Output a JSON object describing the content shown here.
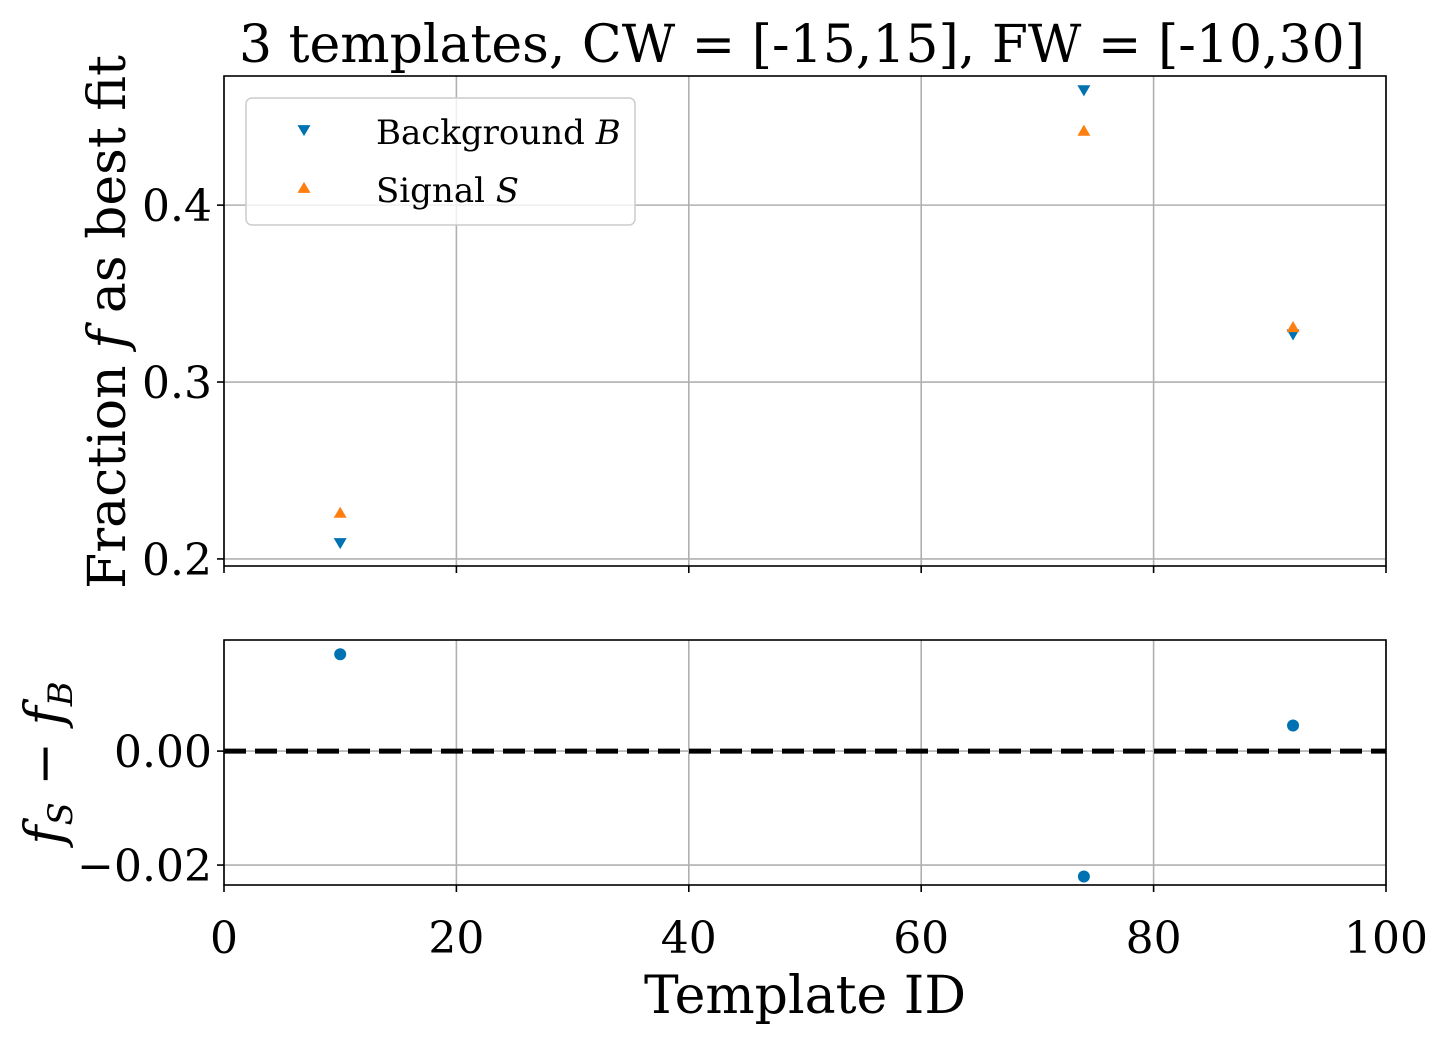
{
  "chart_data": [
    {
      "type": "scatter",
      "title": "3 templates, CW = [-15,15], FW = [-10,30]",
      "xlabel": "",
      "ylabel": "Fraction f as best fit",
      "xlim": [
        0,
        100
      ],
      "ylim": [
        0.196,
        0.473
      ],
      "xticks": [
        0,
        20,
        40,
        60,
        80,
        100
      ],
      "xticklabels_visible": false,
      "yticks": [
        0.2,
        0.3,
        0.4
      ],
      "ytick_labels": [
        "0.2",
        "0.3",
        "0.4"
      ],
      "grid": true,
      "legend": {
        "position": "top-left"
      },
      "series": [
        {
          "name": "Background B",
          "marker": "triangle-down",
          "color": "#0072b2",
          "x": [
            10,
            74,
            92
          ],
          "y": [
            0.209,
            0.465,
            0.327
          ]
        },
        {
          "name": "Signal S",
          "marker": "triangle-up",
          "color": "#ff7f0e",
          "x": [
            10,
            74,
            92
          ],
          "y": [
            0.226,
            0.442,
            0.331
          ]
        }
      ]
    },
    {
      "type": "scatter",
      "title": "",
      "xlabel": "Template ID",
      "ylabel": "f_S − f_B",
      "xlim": [
        0,
        100
      ],
      "ylim": [
        -0.0235,
        0.0195
      ],
      "xticks": [
        0,
        20,
        40,
        60,
        80,
        100
      ],
      "xtick_labels": [
        "0",
        "20",
        "40",
        "60",
        "80",
        "100"
      ],
      "yticks": [
        -0.02,
        0.0
      ],
      "ytick_labels": [
        "−0.02",
        "0.00"
      ],
      "grid": true,
      "reference_line": {
        "y": 0.0,
        "style": "dashed",
        "color": "#000000"
      },
      "series": [
        {
          "marker": "circle",
          "color": "#0072b2",
          "x": [
            10,
            74,
            92
          ],
          "y": [
            0.017,
            -0.022,
            0.0045
          ]
        }
      ]
    }
  ]
}
